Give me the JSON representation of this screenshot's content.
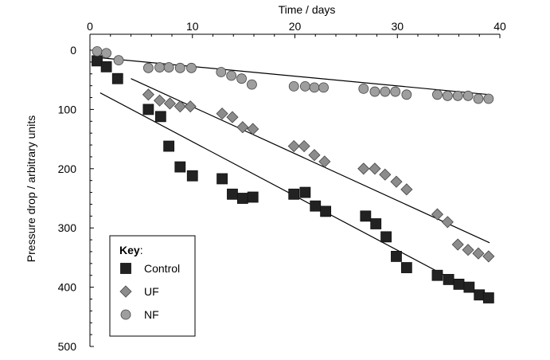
{
  "chart_data": {
    "type": "scatter",
    "xlabel": "Time / days",
    "ylabel": "Pressure drop / arbitrary units",
    "xlim": [
      0,
      40
    ],
    "ylim": [
      0,
      500
    ],
    "y_inverted": true,
    "x_axis_position": "top",
    "xticks": [
      0,
      10,
      20,
      30,
      40
    ],
    "yticks": [
      0,
      100,
      200,
      300,
      400,
      500
    ],
    "grid": false,
    "legend": {
      "title": "Key",
      "placement": "bottom-left"
    },
    "series": [
      {
        "name": "Control",
        "marker": "square",
        "color": "#222222",
        "points": [
          [
            0.7,
            18
          ],
          [
            1.6,
            28
          ],
          [
            2.7,
            48
          ],
          [
            5.7,
            100
          ],
          [
            6.9,
            112
          ],
          [
            7.7,
            162
          ],
          [
            8.8,
            197
          ],
          [
            10.0,
            212
          ],
          [
            12.9,
            217
          ],
          [
            13.9,
            243
          ],
          [
            14.9,
            250
          ],
          [
            15.9,
            248
          ],
          [
            19.9,
            243
          ],
          [
            21.0,
            240
          ],
          [
            22.0,
            263
          ],
          [
            23.0,
            272
          ],
          [
            26.9,
            280
          ],
          [
            27.9,
            293
          ],
          [
            28.9,
            315
          ],
          [
            29.9,
            348
          ],
          [
            30.9,
            367
          ],
          [
            33.9,
            380
          ],
          [
            35.0,
            387
          ],
          [
            36.0,
            395
          ],
          [
            37.0,
            400
          ],
          [
            38.0,
            413
          ],
          [
            38.9,
            418
          ]
        ],
        "trend": [
          [
            1.0,
            72
          ],
          [
            39.0,
            420
          ]
        ]
      },
      {
        "name": "UF",
        "marker": "diamond",
        "color": "#8c8c8c",
        "points": [
          [
            5.7,
            75
          ],
          [
            6.8,
            85
          ],
          [
            7.8,
            90
          ],
          [
            8.8,
            95
          ],
          [
            9.8,
            95
          ],
          [
            12.9,
            107
          ],
          [
            13.9,
            113
          ],
          [
            14.9,
            130
          ],
          [
            15.9,
            133
          ],
          [
            19.9,
            162
          ],
          [
            20.9,
            162
          ],
          [
            21.9,
            177
          ],
          [
            22.9,
            188
          ],
          [
            26.7,
            200
          ],
          [
            27.8,
            200
          ],
          [
            28.8,
            210
          ],
          [
            29.9,
            222
          ],
          [
            30.9,
            235
          ],
          [
            33.9,
            277
          ],
          [
            34.9,
            290
          ],
          [
            35.9,
            328
          ],
          [
            36.9,
            337
          ],
          [
            37.9,
            343
          ],
          [
            38.9,
            348
          ]
        ],
        "trend": [
          [
            4.0,
            48
          ],
          [
            39.0,
            325
          ]
        ]
      },
      {
        "name": "NF",
        "marker": "circle",
        "color": "#9e9e9e",
        "points": [
          [
            0.7,
            2
          ],
          [
            1.6,
            5
          ],
          [
            2.8,
            17
          ],
          [
            5.7,
            30
          ],
          [
            6.8,
            29
          ],
          [
            7.7,
            29
          ],
          [
            8.8,
            30
          ],
          [
            9.9,
            30
          ],
          [
            12.8,
            37
          ],
          [
            13.8,
            43
          ],
          [
            14.8,
            48
          ],
          [
            15.8,
            58
          ],
          [
            19.9,
            61
          ],
          [
            21.0,
            61
          ],
          [
            21.9,
            63
          ],
          [
            22.8,
            63
          ],
          [
            26.7,
            65
          ],
          [
            27.8,
            70
          ],
          [
            28.8,
            70
          ],
          [
            29.8,
            70
          ],
          [
            30.9,
            75
          ],
          [
            33.9,
            75
          ],
          [
            34.9,
            77
          ],
          [
            35.9,
            77
          ],
          [
            36.9,
            77
          ],
          [
            37.9,
            82
          ],
          [
            38.9,
            82
          ]
        ],
        "trend": [
          [
            0.5,
            12
          ],
          [
            39.0,
            75
          ]
        ]
      }
    ]
  }
}
